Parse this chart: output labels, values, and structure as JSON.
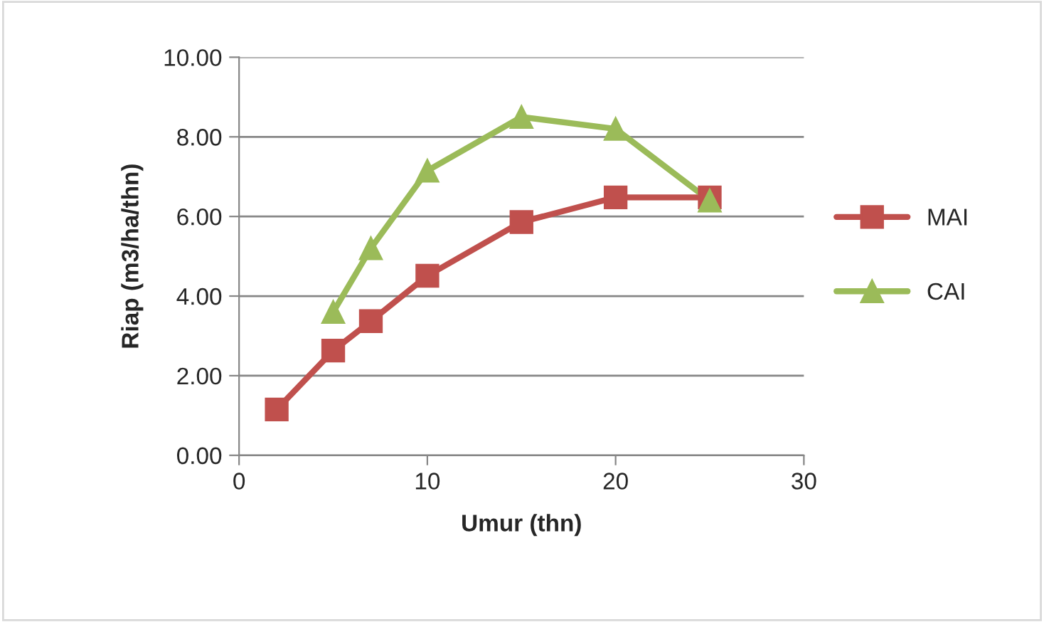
{
  "chart_data": {
    "type": "line",
    "xlabel": "Umur (thn)",
    "ylabel": "Riap (m3/ha/thn)",
    "xlim": [
      0,
      30
    ],
    "xticks": [
      0,
      10,
      20,
      30
    ],
    "ylim": [
      0,
      10
    ],
    "yticks": [
      {
        "value": 0,
        "label": "0.00"
      },
      {
        "value": 2,
        "label": "2.00"
      },
      {
        "value": 4,
        "label": "4.00"
      },
      {
        "value": 6,
        "label": "6.00"
      },
      {
        "value": 8,
        "label": "8.00"
      },
      {
        "value": 10,
        "label": "10.00"
      }
    ],
    "grid": "y",
    "legend": "right",
    "series": [
      {
        "name": "MAI",
        "color": "#c0504d",
        "marker": "square",
        "x": [
          2,
          5,
          7,
          10,
          15,
          20,
          25
        ],
        "values": [
          1.15,
          2.63,
          3.37,
          4.51,
          5.86,
          6.48,
          6.48
        ]
      },
      {
        "name": "CAI",
        "color": "#9bbb59",
        "marker": "triangle",
        "x": [
          5,
          7,
          10,
          15,
          20,
          25
        ],
        "values": [
          3.6,
          5.2,
          7.15,
          8.5,
          8.2,
          6.4
        ]
      }
    ]
  }
}
